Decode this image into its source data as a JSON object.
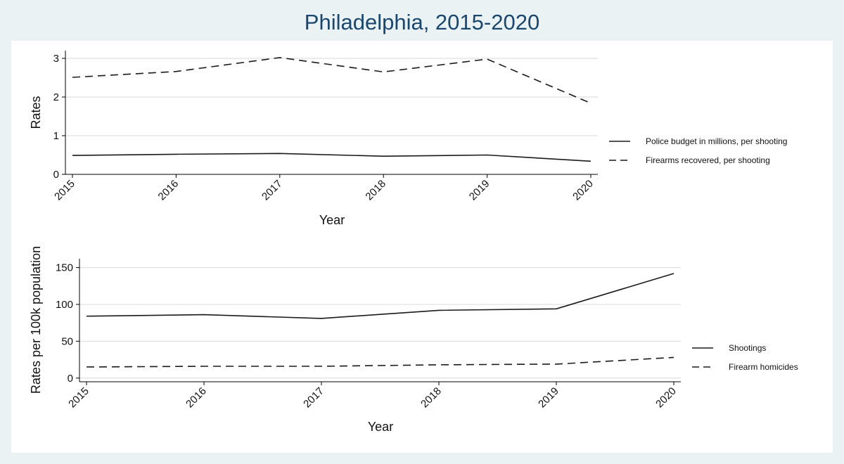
{
  "figure": {
    "title": "Philadelphia, 2015-2020"
  },
  "chart_data": [
    {
      "type": "line",
      "x": [
        "2015",
        "2016",
        "2017",
        "2018",
        "2019",
        "2020"
      ],
      "xlabel": "Year",
      "ylabel": "Rates",
      "ylim": [
        0,
        3.2
      ],
      "yticks": [
        "0",
        "1",
        "2",
        "3"
      ],
      "grid": true,
      "legend_position": "right",
      "series": [
        {
          "name": "Police budget in millions, per shooting",
          "style": "solid",
          "values": [
            0.49,
            0.52,
            0.54,
            0.47,
            0.5,
            0.34
          ]
        },
        {
          "name": "Firearms recovered, per shooting",
          "style": "dashed",
          "values": [
            2.51,
            2.66,
            3.02,
            2.65,
            2.98,
            1.84
          ]
        }
      ]
    },
    {
      "type": "line",
      "x": [
        "2015",
        "2016",
        "2017",
        "2018",
        "2019",
        "2020"
      ],
      "xlabel": "Year",
      "ylabel": "Rates per 100k population",
      "ylim": [
        -5,
        162
      ],
      "yticks": [
        "0",
        "50",
        "100",
        "150"
      ],
      "grid": true,
      "legend_position": "right",
      "series": [
        {
          "name": "Shootings",
          "style": "solid",
          "values": [
            84,
            86,
            81,
            92,
            94,
            142
          ]
        },
        {
          "name": "Firearm homicides",
          "style": "dashed",
          "values": [
            15,
            16,
            16,
            18,
            19,
            28
          ]
        }
      ]
    }
  ]
}
